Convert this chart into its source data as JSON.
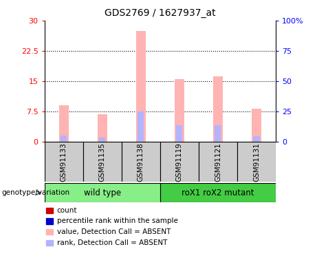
{
  "title": "GDS2769 / 1627937_at",
  "samples": [
    "GSM91133",
    "GSM91135",
    "GSM91138",
    "GSM91119",
    "GSM91121",
    "GSM91131"
  ],
  "groups": [
    {
      "label": "wild type",
      "color": "#88ee88",
      "span": [
        0,
        3
      ]
    },
    {
      "label": "roX1 roX2 mutant",
      "color": "#44cc44",
      "span": [
        3,
        6
      ]
    }
  ],
  "pink_values": [
    9.0,
    6.8,
    27.5,
    15.5,
    16.2,
    8.2
  ],
  "blue_values_pct": [
    5.0,
    3.5,
    25.0,
    13.5,
    14.0,
    4.5
  ],
  "red_values": [
    1.0,
    0.8,
    1.0,
    0.5,
    0.6,
    0.9
  ],
  "ylim_left": [
    0,
    30
  ],
  "ylim_right": [
    0,
    100
  ],
  "yticks_left": [
    0,
    7.5,
    15,
    22.5,
    30
  ],
  "ytick_labels_left": [
    "0",
    "7.5",
    "15",
    "22.5",
    "30"
  ],
  "yticks_right": [
    0,
    25,
    50,
    75,
    100
  ],
  "ytick_labels_right": [
    "0",
    "25",
    "50",
    "75",
    "100%"
  ],
  "bar_width": 0.25,
  "pink_color": "#ffb3b3",
  "blue_color": "#b3b3ff",
  "red_color": "#cc0000",
  "dark_blue_color": "#0000cc",
  "legend_items": [
    {
      "color": "#cc0000",
      "label": "count"
    },
    {
      "color": "#0000cc",
      "label": "percentile rank within the sample"
    },
    {
      "color": "#ffb3b3",
      "label": "value, Detection Call = ABSENT"
    },
    {
      "color": "#b3b3ff",
      "label": "rank, Detection Call = ABSENT"
    }
  ]
}
